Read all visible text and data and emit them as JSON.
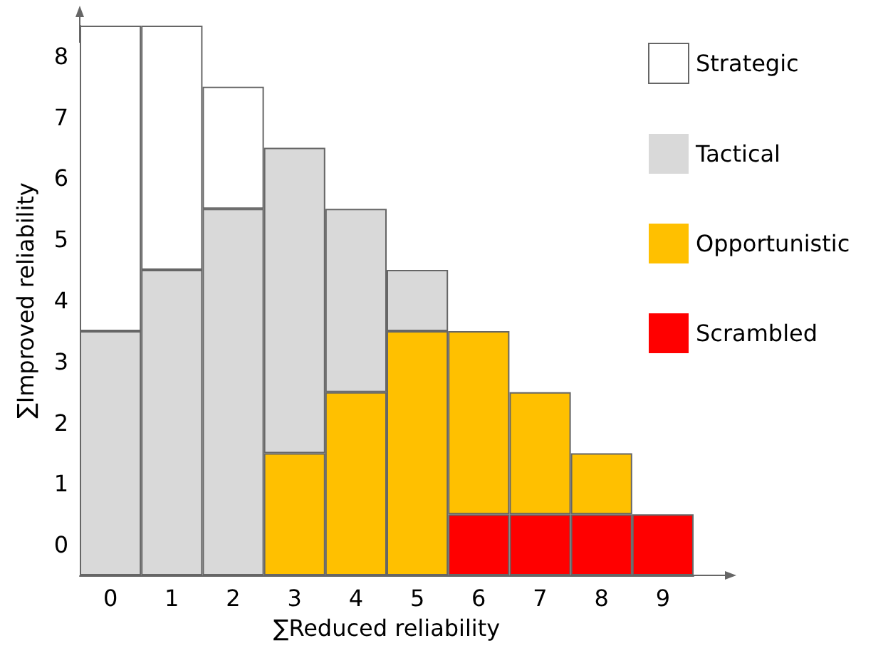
{
  "chart_data": {
    "type": "bar",
    "stacked": true,
    "xlabel": "∑Reduced reliability",
    "ylabel": "∑Improved reliability",
    "categories": [
      "0",
      "1",
      "2",
      "3",
      "4",
      "5",
      "6",
      "7",
      "8",
      "9"
    ],
    "ylim": [
      0,
      9
    ],
    "yticks": [
      {
        "value": 0.5,
        "label": "0"
      },
      {
        "value": 1.5,
        "label": "1"
      },
      {
        "value": 2.5,
        "label": "2"
      },
      {
        "value": 3.5,
        "label": "3"
      },
      {
        "value": 4.5,
        "label": "4"
      },
      {
        "value": 5.5,
        "label": "5"
      },
      {
        "value": 6.5,
        "label": "6"
      },
      {
        "value": 7.5,
        "label": "7"
      },
      {
        "value": 8.5,
        "label": "8"
      }
    ],
    "series": [
      {
        "name": "Scrambled",
        "color": "#ff0000",
        "values": [
          0,
          0,
          0,
          0,
          0,
          0,
          1,
          1,
          1,
          1
        ]
      },
      {
        "name": "Opportunistic",
        "color": "#ffc000",
        "values": [
          0,
          0,
          0,
          2,
          3,
          4,
          3,
          2,
          1,
          0
        ]
      },
      {
        "name": "Tactical",
        "color": "#d9d9d9",
        "values": [
          4,
          5,
          6,
          5,
          3,
          1,
          0,
          0,
          0,
          0
        ]
      },
      {
        "name": "Strategic",
        "color": "#ffffff",
        "values": [
          5,
          4,
          2,
          0,
          0,
          0,
          0,
          0,
          0,
          0
        ]
      }
    ],
    "legend": "right"
  }
}
